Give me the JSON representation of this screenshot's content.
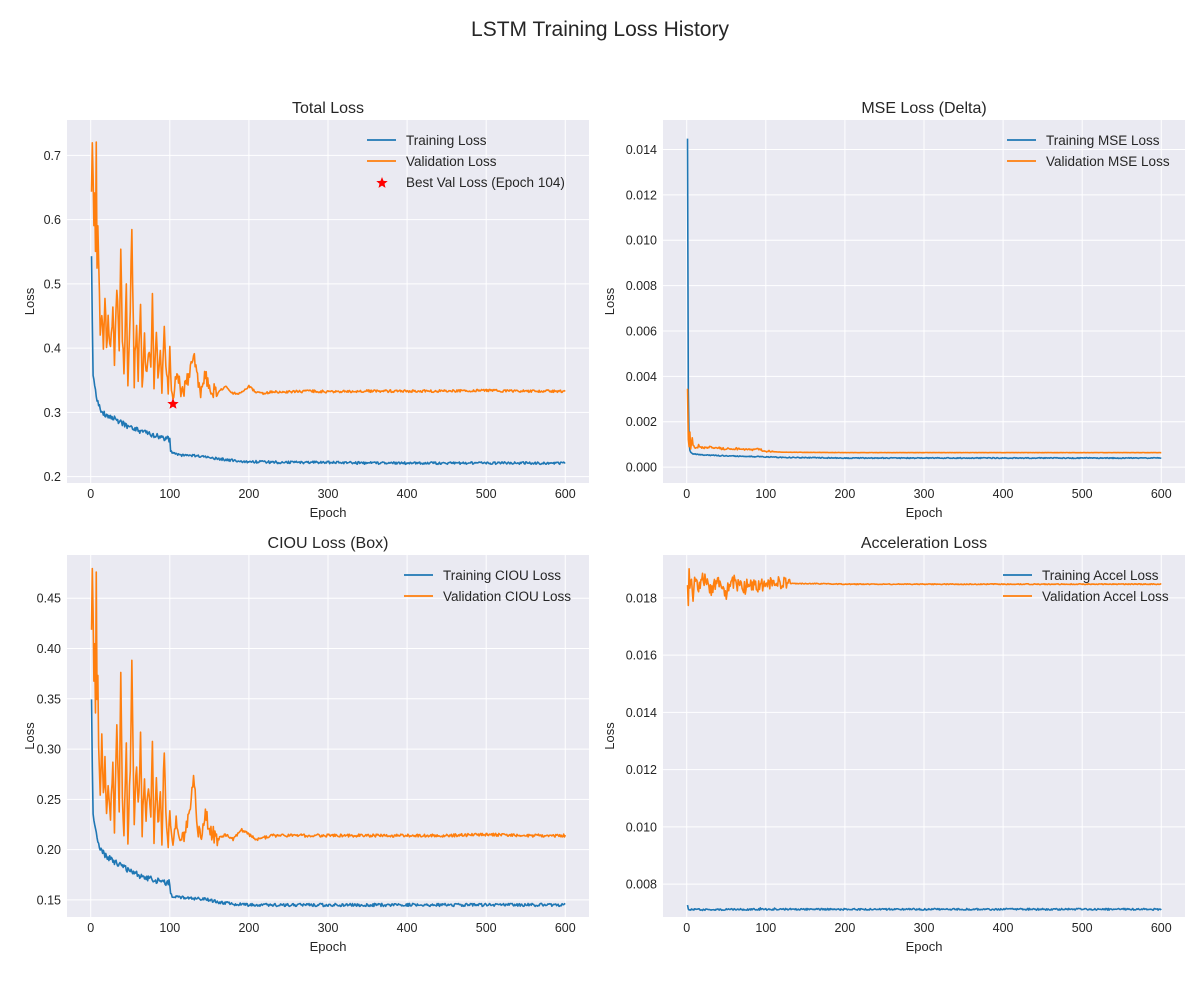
{
  "figure": {
    "title": "LSTM Training Loss History"
  },
  "colors": {
    "train": "#1f77b4",
    "val": "#ff7f0e",
    "best": "#ff0000",
    "background": "#eaeaf2",
    "grid": "#ffffff"
  },
  "chart_data": [
    {
      "type": "line",
      "title": "Total Loss",
      "xlabel": "Epoch",
      "ylabel": "Loss",
      "xlim": [
        -30,
        630
      ],
      "ylim": [
        0.19,
        0.755
      ],
      "xticks": [
        0,
        100,
        200,
        300,
        400,
        500,
        600
      ],
      "yticks": [
        0.2,
        0.3,
        0.4,
        0.5,
        0.6,
        0.7
      ],
      "tick_decimals": 1,
      "grid": true,
      "legend_position": "upper right",
      "series": [
        {
          "name": "Training Loss",
          "role": "train",
          "x": [
            1,
            2,
            3,
            5,
            8,
            10,
            15,
            20,
            30,
            40,
            50,
            60,
            70,
            80,
            90,
            100,
            101,
            103,
            110,
            120,
            140,
            150,
            160,
            180,
            200,
            250,
            300,
            350,
            400,
            450,
            500,
            550,
            600
          ],
          "y": [
            0.542,
            0.44,
            0.36,
            0.345,
            0.32,
            0.31,
            0.3,
            0.295,
            0.29,
            0.283,
            0.276,
            0.272,
            0.268,
            0.264,
            0.261,
            0.258,
            0.24,
            0.236,
            0.234,
            0.233,
            0.232,
            0.23,
            0.228,
            0.225,
            0.223,
            0.222,
            0.222,
            0.221,
            0.221,
            0.221,
            0.221,
            0.221,
            0.221
          ],
          "noise": 0.004,
          "noise_after": 100,
          "noise_late": 0.002
        },
        {
          "name": "Validation Loss",
          "role": "val",
          "x": [
            1,
            2,
            3,
            4,
            5,
            6,
            7,
            8,
            9,
            10,
            12,
            14,
            16,
            18,
            20,
            22,
            25,
            28,
            30,
            33,
            36,
            38,
            40,
            42,
            45,
            47,
            50,
            52,
            55,
            58,
            60,
            63,
            65,
            68,
            70,
            73,
            76,
            78,
            80,
            83,
            85,
            88,
            90,
            93,
            95,
            98,
            100,
            102,
            104,
            106,
            108,
            110,
            115,
            120,
            125,
            130,
            135,
            140,
            145,
            150,
            160,
            170,
            180,
            190,
            200,
            210,
            220,
            230,
            250,
            280,
            300,
            350,
            400,
            450,
            500,
            550,
            600
          ],
          "y": [
            0.64,
            0.73,
            0.66,
            0.58,
            0.62,
            0.55,
            0.71,
            0.52,
            0.6,
            0.55,
            0.42,
            0.46,
            0.4,
            0.48,
            0.41,
            0.44,
            0.4,
            0.46,
            0.38,
            0.5,
            0.39,
            0.56,
            0.42,
            0.36,
            0.5,
            0.33,
            0.46,
            0.59,
            0.35,
            0.44,
            0.36,
            0.47,
            0.34,
            0.42,
            0.36,
            0.4,
            0.37,
            0.48,
            0.34,
            0.43,
            0.35,
            0.39,
            0.33,
            0.44,
            0.37,
            0.34,
            0.4,
            0.33,
            0.313,
            0.34,
            0.35,
            0.36,
            0.33,
            0.34,
            0.36,
            0.39,
            0.35,
            0.33,
            0.36,
            0.34,
            0.33,
            0.34,
            0.33,
            0.33,
            0.34,
            0.33,
            0.33,
            0.332,
            0.332,
            0.333,
            0.332,
            0.333,
            0.333,
            0.333,
            0.334,
            0.333,
            0.333
          ],
          "noise": 0.012,
          "noise_after": 160,
          "noise_late": 0.002
        }
      ],
      "markers": [
        {
          "name": "Best Val Loss (Epoch 104)",
          "x": 104,
          "y": 0.313,
          "symbol": "star"
        }
      ]
    },
    {
      "type": "line",
      "title": "MSE Loss (Delta)",
      "xlabel": "Epoch",
      "ylabel": "Loss",
      "xlim": [
        -30,
        630
      ],
      "ylim": [
        -0.0007,
        0.0153
      ],
      "xticks": [
        0,
        100,
        200,
        300,
        400,
        500,
        600
      ],
      "yticks": [
        0.0,
        0.002,
        0.004,
        0.006,
        0.008,
        0.01,
        0.012,
        0.014
      ],
      "tick_decimals": 3,
      "grid": true,
      "legend_position": "upper right",
      "series": [
        {
          "name": "Training MSE Loss",
          "role": "train",
          "x": [
            1,
            2,
            3,
            4,
            5,
            7,
            10,
            15,
            20,
            30,
            50,
            70,
            100,
            120,
            150,
            200,
            300,
            400,
            500,
            600
          ],
          "y": [
            0.0145,
            0.0034,
            0.0011,
            0.00075,
            0.00065,
            0.0006,
            0.00057,
            0.00055,
            0.00054,
            0.00052,
            0.0005,
            0.00048,
            0.00045,
            0.00043,
            0.00042,
            0.0004,
            0.0004,
            0.0004,
            0.0004,
            0.0004
          ],
          "noise": 2e-05,
          "noise_after": 100,
          "noise_late": 2e-05
        },
        {
          "name": "Validation MSE Loss",
          "role": "val",
          "x": [
            1,
            2,
            3,
            4,
            5,
            6,
            7,
            8,
            10,
            15,
            20,
            30,
            50,
            70,
            80,
            90,
            100,
            110,
            120,
            150,
            200,
            300,
            400,
            500,
            600
          ],
          "y": [
            0.0035,
            0.0012,
            0.0009,
            0.0015,
            0.0008,
            0.0011,
            0.0013,
            0.00095,
            0.00085,
            0.0009,
            0.00085,
            0.00088,
            0.0008,
            0.00078,
            0.00075,
            0.0008,
            0.0007,
            0.00068,
            0.00066,
            0.00065,
            0.00064,
            0.00064,
            0.00064,
            0.00064,
            0.00064
          ],
          "noise": 5e-05,
          "noise_after": 110,
          "noise_late": 5e-06
        }
      ],
      "markers": []
    },
    {
      "type": "line",
      "title": "CIOU Loss (Box)",
      "xlabel": "Epoch",
      "ylabel": "Loss",
      "xlim": [
        -30,
        630
      ],
      "ylim": [
        0.133,
        0.493
      ],
      "xticks": [
        0,
        100,
        200,
        300,
        400,
        500,
        600
      ],
      "yticks": [
        0.15,
        0.2,
        0.25,
        0.3,
        0.35,
        0.4,
        0.45
      ],
      "tick_decimals": 2,
      "grid": true,
      "legend_position": "upper right",
      "series": [
        {
          "name": "Training CIOU Loss",
          "role": "train",
          "x": [
            1,
            2,
            3,
            5,
            8,
            10,
            15,
            20,
            30,
            40,
            50,
            60,
            70,
            80,
            90,
            100,
            101,
            103,
            110,
            120,
            140,
            150,
            160,
            180,
            200,
            250,
            300,
            400,
            500,
            600
          ],
          "y": [
            0.35,
            0.28,
            0.235,
            0.225,
            0.21,
            0.205,
            0.198,
            0.193,
            0.188,
            0.183,
            0.178,
            0.175,
            0.172,
            0.17,
            0.168,
            0.167,
            0.156,
            0.154,
            0.153,
            0.152,
            0.151,
            0.15,
            0.148,
            0.146,
            0.145,
            0.145,
            0.145,
            0.145,
            0.145,
            0.145
          ],
          "noise": 0.003,
          "noise_after": 100,
          "noise_late": 0.0015
        },
        {
          "name": "Validation CIOU Loss",
          "role": "val",
          "x": [
            1,
            2,
            3,
            4,
            5,
            6,
            7,
            8,
            9,
            10,
            12,
            14,
            16,
            18,
            20,
            22,
            25,
            28,
            30,
            33,
            36,
            38,
            40,
            42,
            45,
            47,
            50,
            52,
            55,
            58,
            60,
            63,
            65,
            68,
            70,
            73,
            76,
            78,
            80,
            83,
            85,
            88,
            90,
            93,
            95,
            98,
            100,
            102,
            104,
            106,
            108,
            110,
            115,
            120,
            125,
            130,
            135,
            140,
            145,
            150,
            160,
            170,
            180,
            190,
            200,
            210,
            220,
            230,
            250,
            280,
            300,
            350,
            400,
            450,
            500,
            550,
            600
          ],
          "y": [
            0.42,
            0.48,
            0.44,
            0.36,
            0.41,
            0.34,
            0.47,
            0.35,
            0.37,
            0.3,
            0.26,
            0.31,
            0.25,
            0.29,
            0.24,
            0.27,
            0.23,
            0.28,
            0.22,
            0.32,
            0.24,
            0.37,
            0.26,
            0.22,
            0.3,
            0.21,
            0.28,
            0.385,
            0.22,
            0.29,
            0.24,
            0.31,
            0.22,
            0.27,
            0.23,
            0.26,
            0.24,
            0.31,
            0.21,
            0.27,
            0.22,
            0.25,
            0.21,
            0.3,
            0.23,
            0.21,
            0.24,
            0.21,
            0.2,
            0.22,
            0.23,
            0.22,
            0.21,
            0.22,
            0.24,
            0.275,
            0.22,
            0.21,
            0.24,
            0.22,
            0.21,
            0.215,
            0.21,
            0.22,
            0.215,
            0.21,
            0.212,
            0.214,
            0.214,
            0.214,
            0.214,
            0.214,
            0.214,
            0.214,
            0.215,
            0.214,
            0.214
          ],
          "noise": 0.008,
          "noise_after": 160,
          "noise_late": 0.0015
        }
      ],
      "markers": []
    },
    {
      "type": "line",
      "title": "Acceleration Loss",
      "xlabel": "Epoch",
      "ylabel": "Loss",
      "xlim": [
        -30,
        630
      ],
      "ylim": [
        0.00685,
        0.0195
      ],
      "xticks": [
        0,
        100,
        200,
        300,
        400,
        500,
        600
      ],
      "yticks": [
        0.008,
        0.01,
        0.012,
        0.014,
        0.016,
        0.018
      ],
      "tick_decimals": 3,
      "grid": true,
      "legend_position": "upper right",
      "series": [
        {
          "name": "Training Accel Loss",
          "role": "train",
          "x": [
            1,
            2,
            3,
            10,
            50,
            100,
            200,
            300,
            400,
            500,
            600
          ],
          "y": [
            0.00725,
            0.00712,
            0.00711,
            0.00711,
            0.00711,
            0.00712,
            0.00712,
            0.00712,
            0.00712,
            0.00712,
            0.00712
          ],
          "noise": 3e-05,
          "noise_after": 700,
          "noise_late": 3e-05
        },
        {
          "name": "Validation Accel Loss",
          "role": "val",
          "x": [
            1,
            2,
            3,
            4,
            6,
            8,
            10,
            15,
            20,
            30,
            40,
            50,
            60,
            70,
            80,
            90,
            100,
            120,
            140,
            160,
            200,
            250,
            300,
            400,
            500,
            600
          ],
          "y": [
            0.0183,
            0.0179,
            0.0188,
            0.0181,
            0.0187,
            0.018,
            0.0186,
            0.0182,
            0.0187,
            0.0183,
            0.0186,
            0.0182,
            0.0186,
            0.0183,
            0.0185,
            0.0184,
            0.0185,
            0.0185,
            0.0185,
            0.0185,
            0.01848,
            0.01848,
            0.01848,
            0.01848,
            0.01848,
            0.01848
          ],
          "noise": 0.00025,
          "noise_after": 130,
          "noise_late": 1.5e-05
        }
      ],
      "markers": []
    }
  ]
}
